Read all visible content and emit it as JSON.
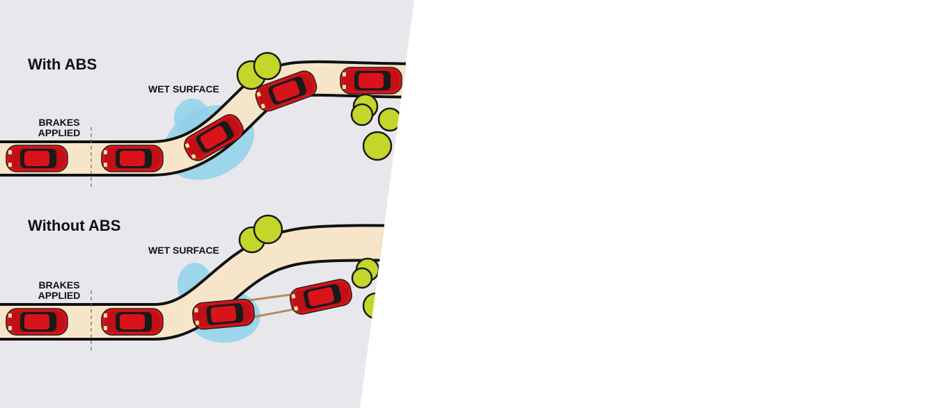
{
  "colors": {
    "panel": "#e8e7ec",
    "road": "#f6e5c8",
    "road_edge": "#111111",
    "wet": "#8fd1ea",
    "tree": "#c5d62b",
    "tree_dark": "#a9bb1e",
    "car": "#d8131a",
    "car_dark": "#8e0b10",
    "glass": "#1a1a1a",
    "skid": "#b58a5c",
    "divider": "#5c6c78"
  },
  "with_abs": {
    "title": "With ABS",
    "wet_label": "WET SURFACE",
    "brakes_line1": "BRAKES",
    "brakes_line2": "APPLIED"
  },
  "without_abs": {
    "title": "Without ABS",
    "wet_label": "WET SURFACE",
    "brakes_line1": "BRAKES",
    "brakes_line2": "APPLIED"
  }
}
